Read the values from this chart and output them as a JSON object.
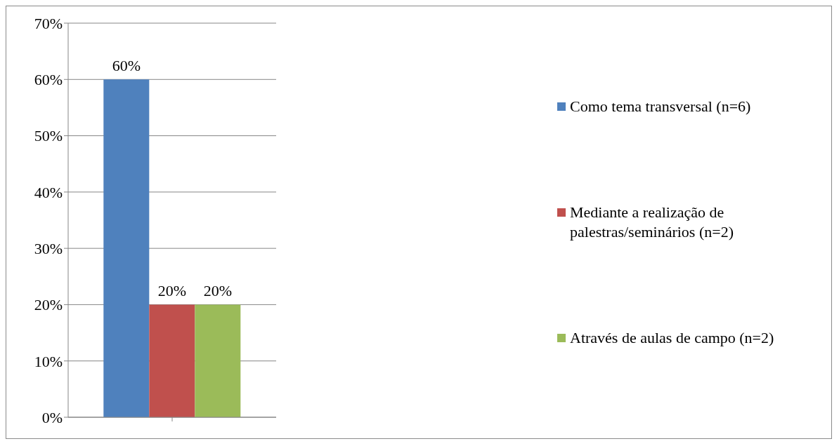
{
  "chart_data": {
    "type": "bar",
    "categories": [
      null
    ],
    "series": [
      {
        "name": "Como tema transversal (n=6)",
        "color": "#4f81bd",
        "values": [
          60
        ],
        "value_labels": [
          "60%"
        ]
      },
      {
        "name": "Mediante a realização de palestras/seminários (n=2)",
        "color": "#c0504d",
        "values": [
          20
        ],
        "value_labels": [
          "20%"
        ]
      },
      {
        "name": "Através de aulas de campo (n=2)",
        "color": "#9bbb59",
        "values": [
          20
        ],
        "value_labels": [
          "20%"
        ]
      }
    ],
    "ylim": [
      0,
      70
    ],
    "yticks": [
      {
        "value": 0,
        "label": "0%"
      },
      {
        "value": 10,
        "label": "10%"
      },
      {
        "value": 20,
        "label": "20%"
      },
      {
        "value": 30,
        "label": "30%"
      },
      {
        "value": 40,
        "label": "40%"
      },
      {
        "value": 50,
        "label": "50%"
      },
      {
        "value": 60,
        "label": "60%"
      },
      {
        "value": 70,
        "label": "70%"
      }
    ],
    "grid": "y",
    "legend": "right"
  }
}
